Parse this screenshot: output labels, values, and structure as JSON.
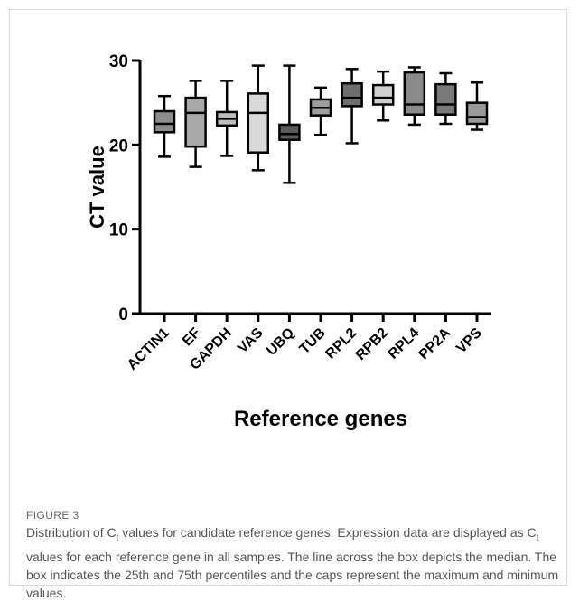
{
  "figure": {
    "label": "FIGURE 3",
    "caption": {
      "part1": "Distribution of C",
      "sub1": "t",
      "part2": " values for candidate reference genes. Expression data are displayed as C",
      "sub2": "t",
      "part3": " values for each reference gene in all samples. The line across the box depicts the median. The box indicates the 25th and 75th percentiles and the caps represent the maximum and minimum values."
    }
  },
  "chart_data": {
    "type": "box",
    "ylabel": "CT value",
    "xlabel": "Reference genes",
    "ylim": [
      0,
      30
    ],
    "yticks": [
      0,
      10,
      20,
      30
    ],
    "grid": false,
    "categories": [
      "ACTIN1",
      "EF",
      "GAPDH",
      "VAS",
      "UBQ",
      "TUB",
      "RPL2",
      "RPB2",
      "RPL4",
      "PP2A",
      "VPS"
    ],
    "boxes": [
      {
        "min": 18.6,
        "q1": 21.5,
        "median": 22.5,
        "q3": 24.0,
        "max": 25.8,
        "color": "#8c8c8c"
      },
      {
        "min": 17.4,
        "q1": 19.8,
        "median": 23.8,
        "q3": 25.6,
        "max": 27.6,
        "color": "#a8a8a8"
      },
      {
        "min": 18.7,
        "q1": 22.3,
        "median": 23.1,
        "q3": 23.9,
        "max": 27.6,
        "color": "#bdbdbd"
      },
      {
        "min": 17.0,
        "q1": 19.1,
        "median": 23.8,
        "q3": 26.1,
        "max": 29.4,
        "color": "#d9d9d9"
      },
      {
        "min": 15.5,
        "q1": 20.6,
        "median": 21.3,
        "q3": 22.4,
        "max": 29.4,
        "color": "#5a5a5a"
      },
      {
        "min": 21.2,
        "q1": 23.5,
        "median": 24.4,
        "q3": 25.4,
        "max": 26.8,
        "color": "#9e9e9e"
      },
      {
        "min": 20.2,
        "q1": 24.6,
        "median": 25.6,
        "q3": 27.3,
        "max": 29.0,
        "color": "#6e6e6e"
      },
      {
        "min": 22.9,
        "q1": 24.8,
        "median": 25.6,
        "q3": 27.1,
        "max": 28.7,
        "color": "#cfcfcf"
      },
      {
        "min": 22.4,
        "q1": 23.6,
        "median": 24.8,
        "q3": 28.6,
        "max": 29.2,
        "color": "#8a8a8a"
      },
      {
        "min": 22.5,
        "q1": 23.6,
        "median": 24.8,
        "q3": 27.2,
        "max": 28.5,
        "color": "#7a7a7a"
      },
      {
        "min": 21.8,
        "q1": 22.5,
        "median": 23.3,
        "q3": 25.0,
        "max": 27.4,
        "color": "#9a9a9a"
      }
    ]
  }
}
